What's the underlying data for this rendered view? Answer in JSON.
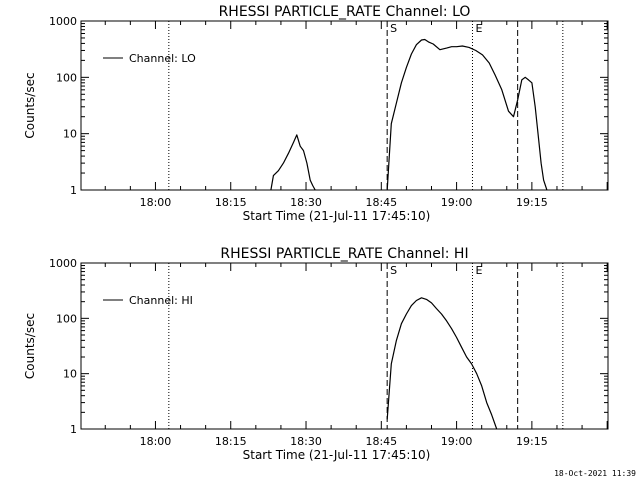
{
  "footer": {
    "timestamp": "18-Oct-2021 11:39"
  },
  "chart_data": [
    {
      "type": "line",
      "title": "RHESSI PARTICLE_RATE Channel: LO",
      "xlabel": "Start Time (21-Jul-11 17:45:10)",
      "ylabel": "Counts/sec",
      "y_scale": "log",
      "ylim": [
        1,
        1000
      ],
      "xlim": [
        "17:45:10",
        "19:30:10"
      ],
      "xticks": [
        "18:00",
        "18:15",
        "18:30",
        "18:45",
        "19:00",
        "19:15"
      ],
      "yticks": [
        "1",
        "10",
        "100",
        "1000"
      ],
      "legend": {
        "position": "top-left",
        "entries": [
          "Channel: LO"
        ]
      },
      "markers": [
        {
          "label": "",
          "time": "18:02:40",
          "style": "dotted"
        },
        {
          "label": "S",
          "time": "18:46:10",
          "style": "dashed"
        },
        {
          "label": "E",
          "time": "19:03:10",
          "style": "dotted"
        },
        {
          "label": "",
          "time": "19:12:10",
          "style": "dashed"
        },
        {
          "label": "",
          "time": "19:21:10",
          "style": "dotted"
        }
      ],
      "series": [
        {
          "name": "Channel: LO",
          "color": "#000000",
          "x": [
            "18:23:00",
            "18:23:30",
            "18:24:30",
            "18:25:30",
            "18:26:30",
            "18:27:30",
            "18:28:10",
            "18:28:50",
            "18:29:30",
            "18:30:10",
            "18:30:50",
            "18:31:20",
            "18:31:50"
          ],
          "y": [
            1,
            1.8,
            2.2,
            3,
            4.5,
            7,
            9.5,
            6,
            5,
            3,
            1.5,
            1.2,
            1
          ]
        },
        {
          "name": "Channel: LO",
          "color": "#000000",
          "x": [
            "18:46:10",
            "18:47:00",
            "18:48:00",
            "18:49:00",
            "18:50:00",
            "18:51:00",
            "18:52:00",
            "18:53:00",
            "18:53:40",
            "18:54:30",
            "18:55:20",
            "18:56:40",
            "18:58:00",
            "18:59:00",
            "19:00:00",
            "19:01:10",
            "19:02:30",
            "19:03:50",
            "19:05:10",
            "19:06:30",
            "19:07:40",
            "19:09:00",
            "19:10:20",
            "19:11:20",
            "19:12:10",
            "19:13:00",
            "19:13:40",
            "19:14:20",
            "19:15:00",
            "19:15:40",
            "19:16:20",
            "19:16:50",
            "19:17:20",
            "19:18:00"
          ],
          "y": [
            1,
            15,
            35,
            80,
            150,
            260,
            380,
            460,
            470,
            420,
            390,
            310,
            330,
            350,
            350,
            360,
            340,
            300,
            250,
            180,
            110,
            60,
            25,
            20,
            40,
            90,
            100,
            90,
            80,
            30,
            8,
            3,
            1.5,
            1
          ]
        }
      ]
    },
    {
      "type": "line",
      "title": "RHESSI PARTICLE_RATE Channel: HI",
      "xlabel": "Start Time (21-Jul-11 17:45:10)",
      "ylabel": "Counts/sec",
      "y_scale": "log",
      "ylim": [
        1,
        1000
      ],
      "xlim": [
        "17:45:10",
        "19:30:10"
      ],
      "xticks": [
        "18:00",
        "18:15",
        "18:30",
        "18:45",
        "19:00",
        "19:15"
      ],
      "yticks": [
        "1",
        "10",
        "100",
        "1000"
      ],
      "legend": {
        "position": "top-left",
        "entries": [
          "Channel: HI"
        ]
      },
      "markers": [
        {
          "label": "",
          "time": "18:02:40",
          "style": "dotted"
        },
        {
          "label": "S",
          "time": "18:46:10",
          "style": "dashed"
        },
        {
          "label": "E",
          "time": "19:03:10",
          "style": "dotted"
        },
        {
          "label": "",
          "time": "19:12:10",
          "style": "dashed"
        },
        {
          "label": "",
          "time": "19:21:10",
          "style": "dotted"
        }
      ],
      "series": [
        {
          "name": "Channel: HI",
          "color": "#000000",
          "x": [
            "18:46:10",
            "18:47:00",
            "18:48:00",
            "18:49:00",
            "18:50:00",
            "18:51:00",
            "18:52:00",
            "18:53:00",
            "18:54:00",
            "18:55:00",
            "18:56:00",
            "18:57:00",
            "18:58:00",
            "18:59:00",
            "19:00:00",
            "19:01:00",
            "19:02:00",
            "19:03:00",
            "19:04:00",
            "19:05:00",
            "19:06:00",
            "19:07:00",
            "19:08:00"
          ],
          "y": [
            1.5,
            15,
            40,
            80,
            120,
            170,
            210,
            235,
            220,
            190,
            150,
            120,
            90,
            65,
            45,
            30,
            20,
            15,
            10,
            6,
            3,
            1.8,
            1
          ]
        }
      ]
    }
  ]
}
